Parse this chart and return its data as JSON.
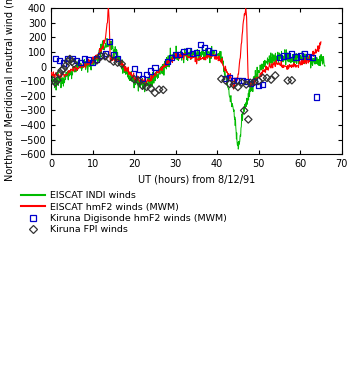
{
  "xlabel": "UT (hours) from 8/12/91",
  "ylabel": "Northward Meridional neutral wind (m/s)",
  "xlim": [
    0,
    70
  ],
  "ylim": [
    -600,
    400
  ],
  "xticks": [
    0,
    10,
    20,
    30,
    40,
    50,
    60,
    70
  ],
  "yticks": [
    -600,
    -500,
    -400,
    -300,
    -200,
    -100,
    0,
    100,
    200,
    300,
    400
  ],
  "green_color": "#00bb00",
  "red_color": "#ff0000",
  "blue_color": "#0000cc",
  "black_color": "#333333",
  "legend_items": [
    "EISCAT INDI winds",
    "EISCAT hmF2 winds (MWM)",
    "Kiruna Digisonde hmF2 winds (MWM)",
    "Kiruna FPI winds"
  ],
  "figsize": [
    3.52,
    3.68
  ],
  "dpi": 100
}
